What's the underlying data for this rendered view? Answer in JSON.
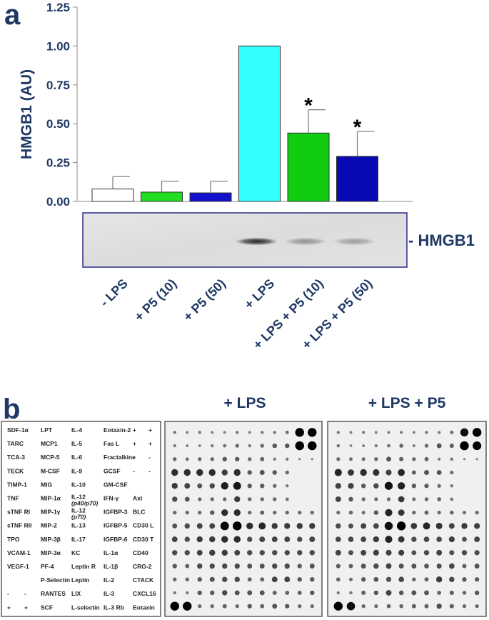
{
  "panel_a": {
    "letter": "a",
    "blot_label": "- HMGB1"
  },
  "panel_b": {
    "letter": "b",
    "array_titles": [
      "+ LPS",
      "+ LPS + P5"
    ],
    "key_rows": [
      [
        "SDF-1α",
        "LPT",
        "IL-4",
        "Eotaxin-2",
        "+",
        "+"
      ],
      [
        "TARC",
        "MCP1",
        "IL-5",
        "Fas L",
        "+",
        "+"
      ],
      [
        "TCA-3",
        "MCP-5",
        "IL-6",
        "Fractalkine",
        "-",
        "-"
      ],
      [
        "TECK",
        "M-CSF",
        "IL-9",
        "GCSF",
        "-",
        "-"
      ],
      [
        "TIMP-1",
        "MIG",
        "IL-10",
        "GM-CSF",
        "",
        ""
      ],
      [
        "TNF",
        "MIP-1α",
        "IL-12 (p40/p70)",
        "IFN-γ",
        "Axl",
        ""
      ],
      [
        "sTNF RI",
        "MIP-1γ",
        "IL-12 (p70)",
        "IGFBP-3",
        "BLC",
        ""
      ],
      [
        "sTNF RII",
        "MIP-2",
        "IL-13",
        "IGFBP-5",
        "CD30 L",
        ""
      ],
      [
        "TPO",
        "MIP-3β",
        "IL-17",
        "IGFBP-6",
        "CD30 T",
        ""
      ],
      [
        "VCAM-1",
        "MIP-3α",
        "KC",
        "IL-1α",
        "CD40",
        ""
      ],
      [
        "VEGF-1",
        "PF-4",
        "Leptin R",
        "IL-1β",
        "CRG-2",
        ""
      ],
      [
        "",
        "P-Selectin",
        "Leptin",
        "IL-2",
        "CTACK",
        ""
      ],
      [
        "-",
        "RANTES",
        "LIX",
        "IL-3",
        "CXCL16",
        ""
      ],
      [
        "+",
        "SCF",
        "L-selectin",
        "IL-3 Rb",
        "Eotaxin",
        ""
      ]
    ],
    "key_pair_cells": {
      "row12_col0": [
        "-",
        "-"
      ],
      "row13_col0": [
        "+",
        "+"
      ]
    }
  },
  "chart_data": {
    "type": "bar",
    "categories": [
      "- LPS",
      "+ P5 (10)",
      "+ P5 (50)",
      "+ LPS",
      "+ LPS + P5 (10)",
      "+ LPS + P5 (50)"
    ],
    "values": [
      0.08,
      0.06,
      0.055,
      1.0,
      0.44,
      0.29
    ],
    "errors": [
      0.08,
      0.07,
      0.075,
      0,
      0.15,
      0.16
    ],
    "significant": [
      false,
      false,
      false,
      false,
      true,
      true
    ],
    "significance_marker": "*",
    "bar_colors": [
      "#ffffff",
      "#22dd22",
      "#1111cc",
      "#33ffff",
      "#11cc11",
      "#0a0ab4"
    ],
    "ylabel": "HMGB1 (AU)",
    "xlabel": "",
    "ylim": [
      0,
      1.25
    ],
    "yticks": [
      "0.00",
      "0.25",
      "0.50",
      "0.75",
      "1.00",
      "1.25"
    ],
    "ytick_values": [
      0,
      0.25,
      0.5,
      0.75,
      1.0,
      1.25
    ],
    "grid": false,
    "blot_band_intensity": [
      0,
      0,
      0,
      0.85,
      0.35,
      0.3
    ]
  }
}
